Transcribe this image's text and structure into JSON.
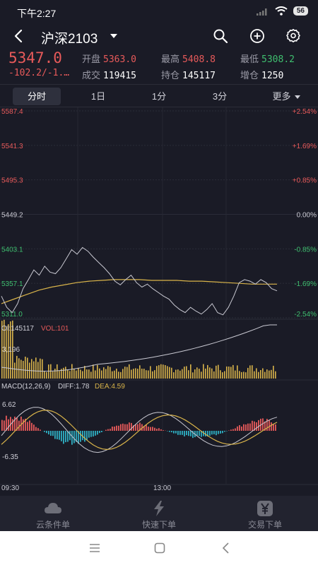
{
  "status": {
    "time": "下午2:27",
    "battery": "56"
  },
  "header": {
    "title": "沪深2103"
  },
  "quote": {
    "price": "5347.0",
    "change": "-102.2/-1.…",
    "open_label": "开盘",
    "open_value": "5363.0",
    "high_label": "最高",
    "high_value": "5408.8",
    "low_label": "最低",
    "low_value": "5308.2",
    "volume_label": "成交",
    "volume_value": "119415",
    "oi_label": "持仓",
    "oi_value": "145117",
    "oi_change_label": "增仓",
    "oi_change_value": "1250"
  },
  "tabs": [
    {
      "label": "分时"
    },
    {
      "label": "1日"
    },
    {
      "label": "1分"
    },
    {
      "label": "3分"
    },
    {
      "label": "更多"
    }
  ],
  "chart_data": {
    "type": "line",
    "price_axis": [
      "5587.4",
      "5541.3",
      "5495.3",
      "5449.2",
      "5403.1",
      "5357.1",
      "5311.0"
    ],
    "percent_axis": [
      "+2.54%",
      "+1.69%",
      "+0.85%",
      "0.00%",
      "-0.85%",
      "-1.69%",
      "-2.54%"
    ],
    "price_range": [
      5311.0,
      5587.4
    ],
    "price_series": [
      5340,
      5325,
      5318,
      5330,
      5350,
      5362,
      5375,
      5368,
      5380,
      5372,
      5370,
      5378,
      5390,
      5402,
      5396,
      5405,
      5400,
      5392,
      5385,
      5378,
      5370,
      5360,
      5355,
      5362,
      5368,
      5358,
      5352,
      5356,
      5350,
      5345,
      5340,
      5336,
      5328,
      5322,
      5318,
      5325,
      5320,
      5316,
      5322,
      5330,
      5318,
      5315,
      5325,
      5340,
      5358,
      5362,
      5360,
      5356,
      5362,
      5358,
      5350,
      5347
    ],
    "avg_series": [
      5330,
      5336,
      5342,
      5348,
      5352,
      5355,
      5358,
      5360,
      5361,
      5362,
      5362,
      5362,
      5361,
      5361,
      5361,
      5360,
      5360,
      5359,
      5358,
      5357,
      5356,
      5356,
      5356
    ],
    "oi_label": "OI:145117",
    "vol_label": "VOL:101",
    "volume_axis_value": "3,196",
    "macd_label": "MACD(12,26,9)",
    "diff_label": "DIFF:1.78",
    "dea_label": "DEA:4.59",
    "macd_axis_top": "6.62",
    "macd_axis_bottom": "-6.35",
    "time_labels": [
      "09:30",
      "13:00"
    ]
  },
  "bottom_tabs": [
    {
      "label": "云条件单",
      "icon": "cloud-icon"
    },
    {
      "label": "快速下单",
      "icon": "lightning-icon"
    },
    {
      "label": "交易下单",
      "icon": "yuan-icon"
    }
  ],
  "colors": {
    "up": "#e85a5a",
    "down": "#3fbf6f",
    "background": "#1a1b26",
    "avg_line": "#d9b44a",
    "macd_neg": "#2fb0c4"
  }
}
